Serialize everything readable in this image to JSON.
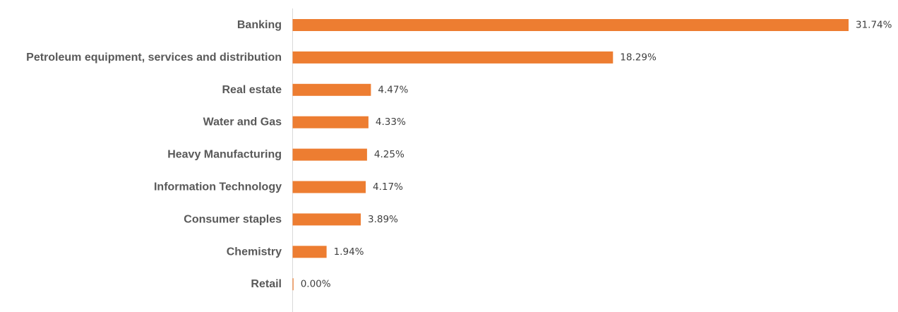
{
  "chart_data": {
    "type": "bar",
    "orientation": "horizontal",
    "categories": [
      "Banking",
      "Petroleum equipment, services and distribution",
      "Real estate",
      "Water and Gas",
      "Heavy Manufacturing",
      "Information Technology",
      "Consumer staples",
      "Chemistry",
      "Retail"
    ],
    "values": [
      31.74,
      18.29,
      4.47,
      4.33,
      4.25,
      4.17,
      3.89,
      1.94,
      0.0
    ],
    "value_labels": [
      "31.74%",
      "18.29%",
      "4.47%",
      "4.33%",
      "4.25%",
      "4.17%",
      "3.89%",
      "1.94%",
      "0.00%"
    ],
    "unit": "%",
    "xlim": [
      0,
      32
    ],
    "grid": false,
    "legend": "none",
    "bar_color": "#ED7D31",
    "axis_color": "#D9D9D9",
    "title": "",
    "xlabel": "",
    "ylabel": ""
  }
}
